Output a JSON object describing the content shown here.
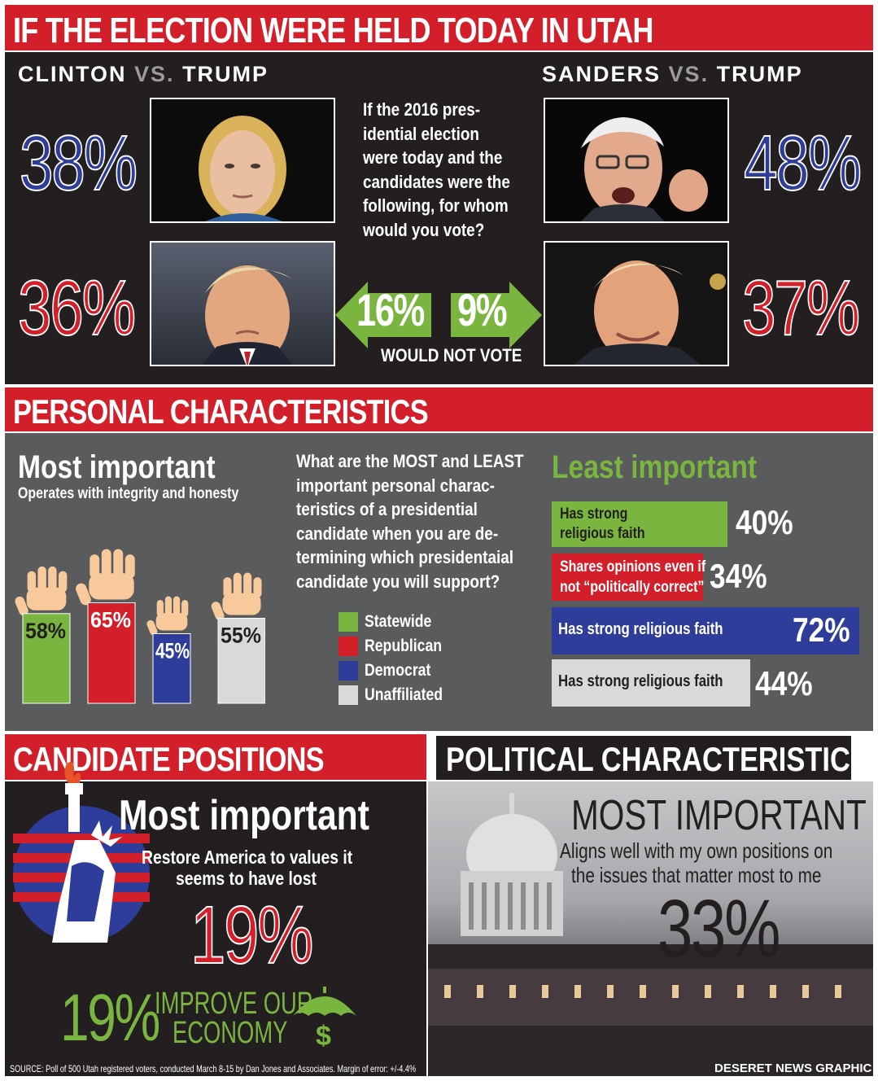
{
  "colors": {
    "red": "#d21f2a",
    "blue": "#2e3d99",
    "green": "#7ab540",
    "grey": "#d9d9d9",
    "dark": "#231f20",
    "panel_grey": "#5a5b5d"
  },
  "section1": {
    "title": "IF THE ELECTION WERE HELD TODAY IN UTAH",
    "left_title_a": "CLINTON",
    "left_title_vs": "VS.",
    "left_title_b": "TRUMP",
    "right_title_a": "SANDERS",
    "right_title_vs": "VS.",
    "right_title_b": "TRUMP",
    "question": "If the 2016 pres-idential election were today and the candidates were the following, for whom would you vote?",
    "question_lines": [
      "If the 2016 pres-",
      "idential election",
      "were today and the",
      "candidates were the",
      "following, for whom",
      "would you vote?"
    ],
    "clinton_pct": "38%",
    "trump_vs_clinton_pct": "36%",
    "sanders_pct": "48%",
    "trump_vs_sanders_pct": "37%",
    "would_not_vote_left": "16%",
    "would_not_vote_right": "9%",
    "would_not_vote_label": "WOULD NOT VOTE"
  },
  "section2": {
    "title": "PERSONAL CHARACTERISTICS",
    "most_title": "Most important",
    "most_subtitle": "Operates with integrity and honesty",
    "question_lines": [
      "What are the MOST and LEAST",
      "important personal charac-",
      "teristics of a presidential",
      "candidate when you are de-",
      "termining which presidentaial",
      "candidate you will support?"
    ],
    "legend": [
      "Statewide",
      "Republican",
      "Democrat",
      "Unaffiliated"
    ],
    "least_title": "Least important",
    "least_items": [
      {
        "label_lines": [
          "Has strong",
          "religious faith"
        ],
        "value": "40%"
      },
      {
        "label_lines": [
          "Shares opinions even if",
          "not “politically correct”"
        ],
        "value": "34%"
      },
      {
        "label_lines": [
          "Has strong religious faith"
        ],
        "value": "72%"
      },
      {
        "label_lines": [
          "Has strong religious faith"
        ],
        "value": "44%"
      }
    ]
  },
  "section3": {
    "title": "CANDIDATE POSITIONS",
    "most_title": "Most important",
    "restore_line1": "Restore America to values it",
    "restore_line2": "seems to have lost",
    "restore_pct": "19%",
    "economy_pct": "19%",
    "economy_line1": "IMPROVE OUR",
    "economy_line2": "ECONOMY",
    "source": "SOURCE: Poll of 500 Utah registered voters, conducted March 8-15 by Dan Jones and Associates. Margin of error: +/-4.4%"
  },
  "section4": {
    "title": "POLITICAL CHARACTERISTIC",
    "most_title": "MOST IMPORTANT",
    "line1": "Aligns well with my own positions on",
    "line2": "the issues that matter most to me",
    "pct": "33%",
    "credit": "DESERET NEWS GRAPHIC"
  },
  "chart_data": [
    {
      "type": "bar",
      "title": "Most important",
      "subtitle": "Operates with integrity and honesty",
      "categories": [
        "Statewide",
        "Republican",
        "Democrat",
        "Unaffiliated"
      ],
      "values": [
        58,
        65,
        45,
        55
      ],
      "labels": [
        "58%",
        "65%",
        "45%",
        "55%"
      ],
      "colors": [
        "#7ab540",
        "#d21f2a",
        "#2e3d99",
        "#d9d9d9"
      ],
      "ylim": [
        0,
        100
      ]
    },
    {
      "type": "bar",
      "orientation": "horizontal",
      "title": "Least important",
      "categories": [
        "Has strong religious faith",
        "Shares opinions even if not “politically correct”",
        "Has strong religious faith",
        "Has strong religious faith"
      ],
      "values": [
        40,
        34,
        72,
        44
      ],
      "colors": [
        "#7ab540",
        "#d21f2a",
        "#2e3d99",
        "#d9d9d9"
      ],
      "xlim": [
        0,
        100
      ]
    }
  ]
}
